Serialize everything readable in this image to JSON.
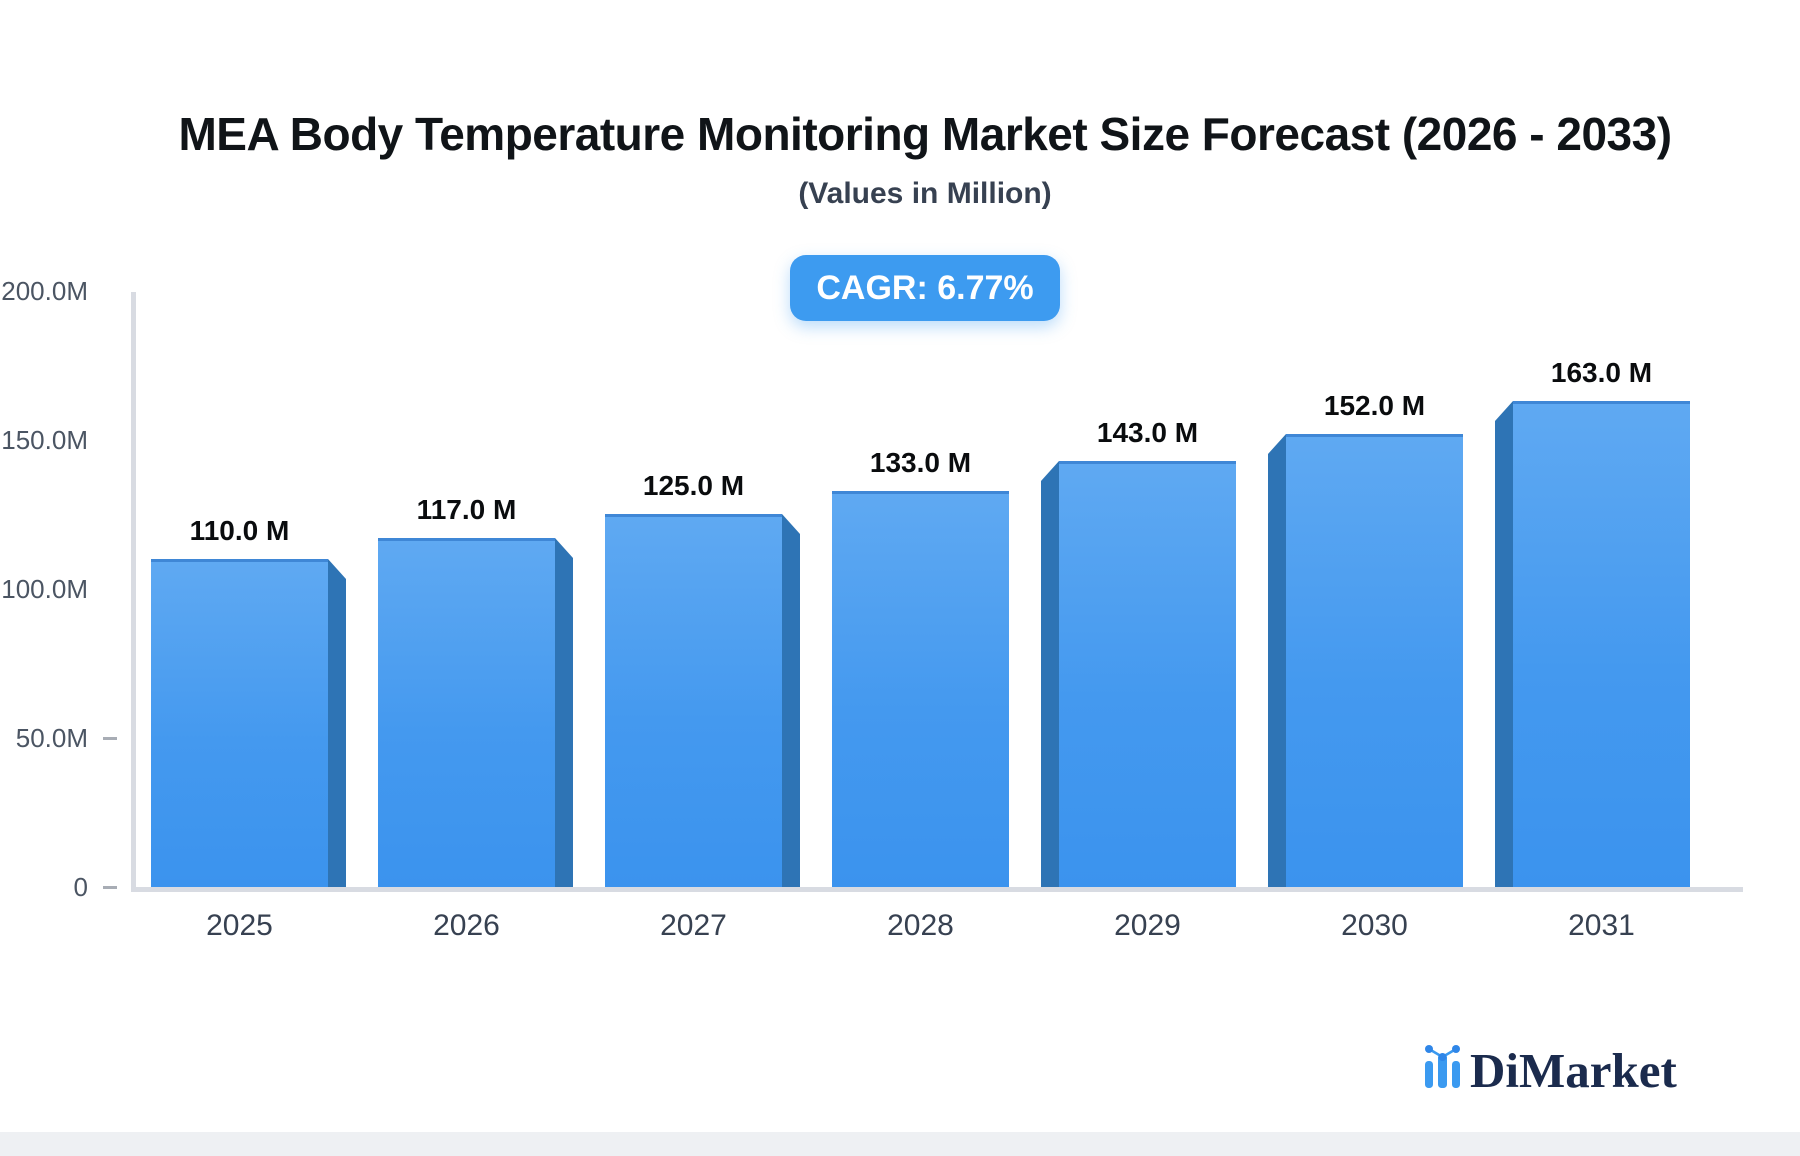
{
  "chart_data": {
    "type": "bar",
    "title": "MEA Body Temperature Monitoring Market Size Forecast (2026 - 2033)",
    "subtitle": "(Values in Million)",
    "cagr_badge": "CAGR: 6.77%",
    "categories": [
      "2025",
      "2026",
      "2027",
      "2028",
      "2029",
      "2030",
      "2031"
    ],
    "values": [
      110,
      117,
      125,
      133,
      143,
      152,
      163
    ],
    "value_labels": [
      "110.0 M",
      "117.0 M",
      "125.0 M",
      "133.0 M",
      "143.0 M",
      "152.0 M",
      "163.0 M"
    ],
    "y_axis": {
      "tick_labels": [
        "200.0M",
        "150.0M",
        "100.0M",
        "50.0M",
        "0"
      ],
      "tick_values": [
        200,
        150,
        100,
        50,
        0
      ],
      "range": [
        0,
        200
      ]
    },
    "grid": "off",
    "legend": "none",
    "colors": {
      "bar_face_top": "#5fa9f2",
      "bar_face_bottom": "#3b93ee",
      "bar_side": "#2e74b5",
      "bar_top_edge": "#3f87d6",
      "badge_background": "#3d9bf0",
      "axis_line": "#d8dbe2",
      "title_text": "#101418",
      "axis_text": "#4b5563"
    }
  },
  "branding": {
    "logo_text": "DiMarket",
    "logo_icon": "bar-chart-trend-icon",
    "logo_text_color": "#1b2b4d",
    "logo_icon_color": "#3b9af0"
  }
}
